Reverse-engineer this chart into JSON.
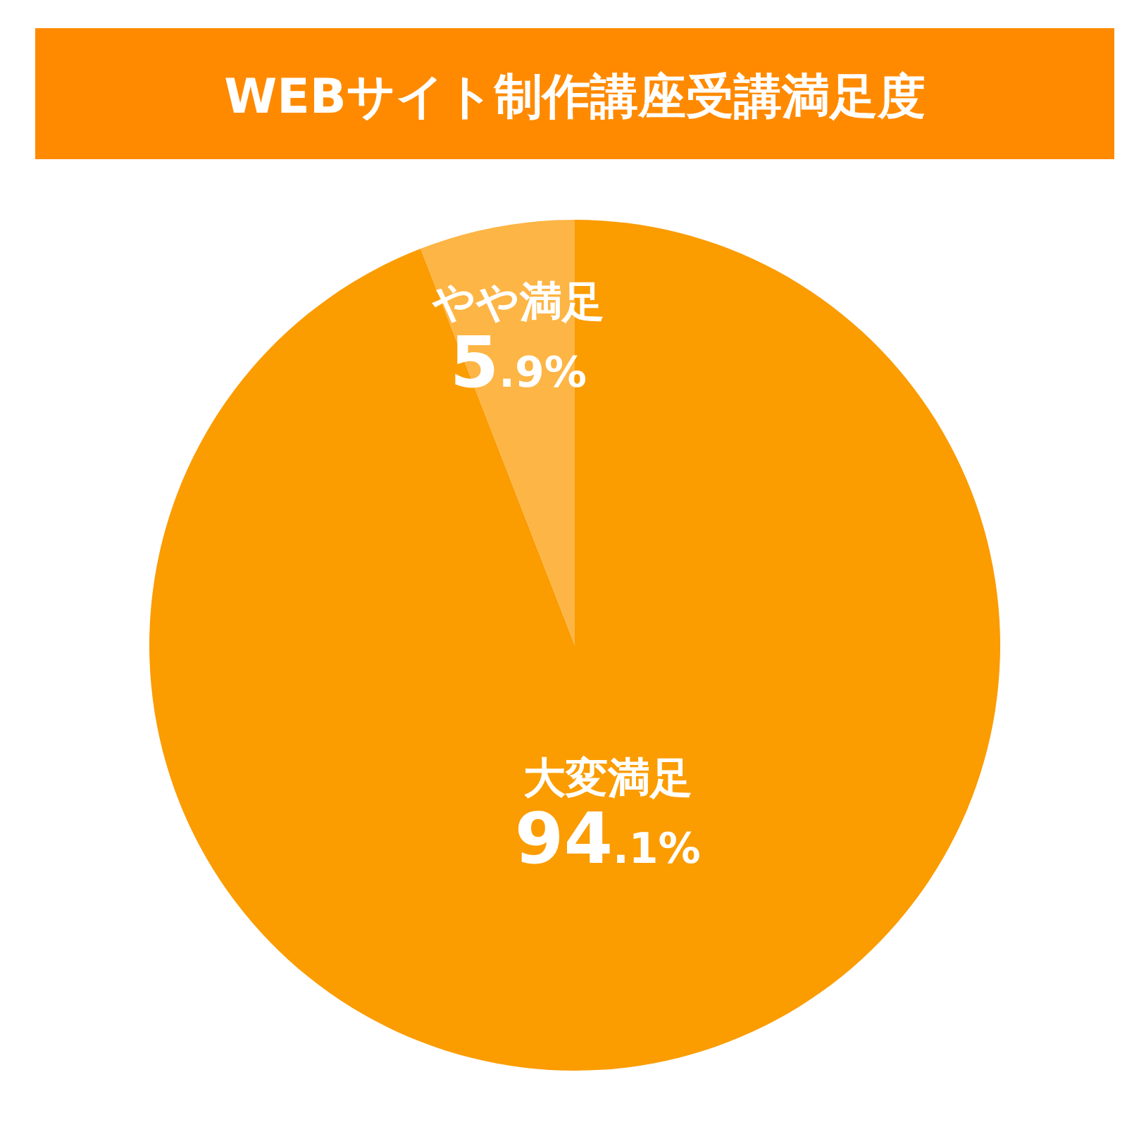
{
  "chart_data": {
    "type": "pie",
    "title": "WEBサイト制作講座受講満足度",
    "categories": [
      "大変満足",
      "やや満足"
    ],
    "values": [
      94.1,
      5.9
    ],
    "colors": [
      "#fb9c00",
      "#fdb545"
    ],
    "value_labels": [
      "94.1%",
      "5.9%"
    ]
  }
}
